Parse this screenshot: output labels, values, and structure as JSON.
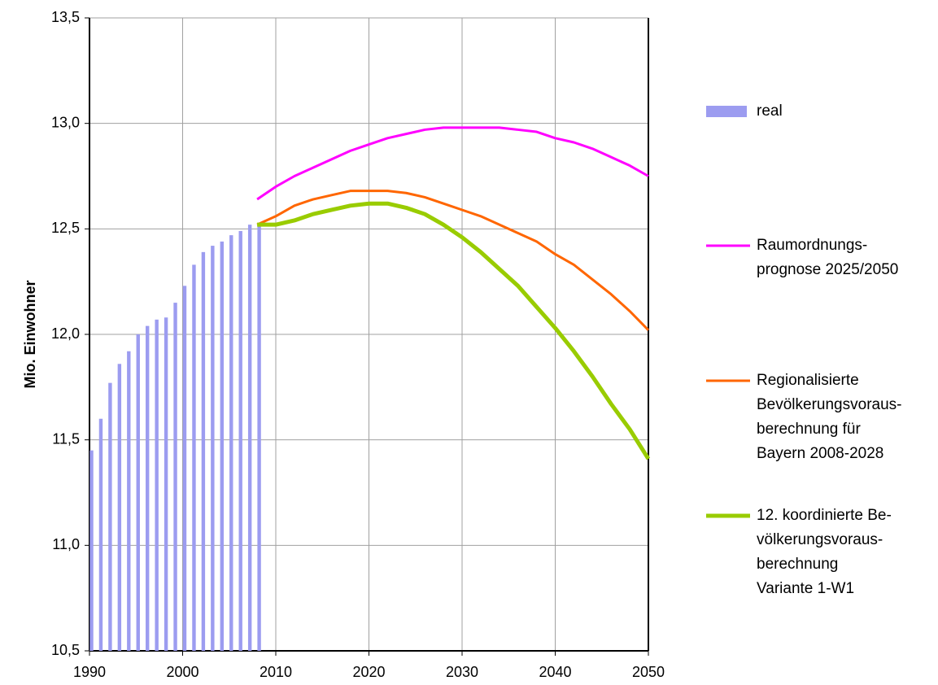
{
  "chart_data": {
    "type": "combo",
    "y_label": "Mio. Einwohner",
    "xlim": [
      1990,
      2050
    ],
    "xticks": [
      1990,
      2000,
      2010,
      2020,
      2030,
      2040,
      2050
    ],
    "ylim": [
      10.5,
      13.5
    ],
    "yticks": [
      {
        "value": 10.5,
        "label": "10,5"
      },
      {
        "value": 11.0,
        "label": "11,0"
      },
      {
        "value": 11.5,
        "label": "11,5"
      },
      {
        "value": 12.0,
        "label": "12,0"
      },
      {
        "value": 12.5,
        "label": "12,5"
      },
      {
        "value": 13.0,
        "label": "13,0"
      },
      {
        "value": 13.5,
        "label": "13,5"
      }
    ],
    "grid": true,
    "legend": "right",
    "series": [
      {
        "name": "real",
        "type": "bar",
        "color": "#9c9cf0",
        "x": [
          1990,
          1991,
          1992,
          1993,
          1994,
          1995,
          1996,
          1997,
          1998,
          1999,
          2000,
          2001,
          2002,
          2003,
          2004,
          2005,
          2006,
          2007,
          2008
        ],
        "values": [
          11.45,
          11.6,
          11.77,
          11.86,
          11.92,
          12.0,
          12.04,
          12.07,
          12.08,
          12.15,
          12.23,
          12.33,
          12.39,
          12.42,
          12.44,
          12.47,
          12.49,
          12.52,
          12.52
        ]
      },
      {
        "name": "Raumordnungs-\nprognose 2025/2050",
        "type": "line",
        "color": "#ff00ff",
        "width": 3,
        "x": [
          2008,
          2010,
          2012,
          2014,
          2016,
          2018,
          2020,
          2022,
          2024,
          2026,
          2028,
          2030,
          2032,
          2034,
          2036,
          2038,
          2040,
          2042,
          2044,
          2046,
          2048,
          2050
        ],
        "values": [
          12.64,
          12.7,
          12.75,
          12.79,
          12.83,
          12.87,
          12.9,
          12.93,
          12.95,
          12.97,
          12.98,
          12.98,
          12.98,
          12.98,
          12.97,
          12.96,
          12.93,
          12.91,
          12.88,
          12.84,
          12.8,
          12.75
        ]
      },
      {
        "name": "Regionalisierte\nBevölkerungsvoraus-\nberechnung für\nBayern 2008-2028",
        "type": "line",
        "color": "#ff6600",
        "width": 3,
        "x": [
          2008,
          2010,
          2012,
          2014,
          2016,
          2018,
          2020,
          2022,
          2024,
          2026,
          2028,
          2030,
          2032,
          2034,
          2036,
          2038,
          2040,
          2042,
          2044,
          2046,
          2048,
          2050
        ],
        "values": [
          12.52,
          12.56,
          12.61,
          12.64,
          12.66,
          12.68,
          12.68,
          12.68,
          12.67,
          12.65,
          12.62,
          12.59,
          12.56,
          12.52,
          12.48,
          12.44,
          12.38,
          12.33,
          12.26,
          12.19,
          12.11,
          12.02
        ]
      },
      {
        "name": "12. koordinierte Be-\nvölkerungsvoraus-\nberechnung\nVariante 1-W1",
        "type": "line",
        "color": "#99cc00",
        "width": 5,
        "x": [
          2008,
          2010,
          2012,
          2014,
          2016,
          2018,
          2020,
          2022,
          2024,
          2026,
          2028,
          2030,
          2032,
          2034,
          2036,
          2038,
          2040,
          2042,
          2044,
          2046,
          2048,
          2050
        ],
        "values": [
          12.52,
          12.52,
          12.54,
          12.57,
          12.59,
          12.61,
          12.62,
          12.62,
          12.6,
          12.57,
          12.52,
          12.46,
          12.39,
          12.31,
          12.23,
          12.13,
          12.03,
          11.92,
          11.8,
          11.67,
          11.55,
          11.41
        ]
      }
    ]
  }
}
